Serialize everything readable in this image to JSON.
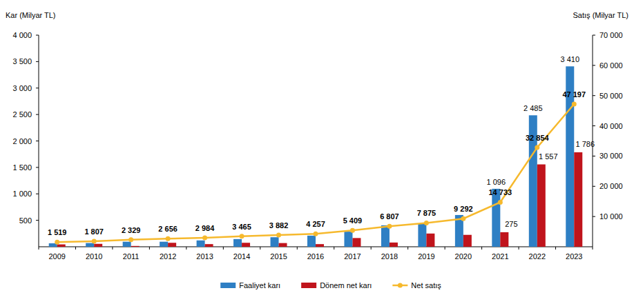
{
  "chart_data": {
    "type": "bar",
    "y_label": "Kar (Milyar TL)",
    "y2_label": "Satış (Milyar TL)",
    "categories": [
      "2009",
      "2010",
      "2011",
      "2012",
      "2013",
      "2014",
      "2015",
      "2016",
      "2017",
      "2018",
      "2019",
      "2020",
      "2021",
      "2022",
      "2023"
    ],
    "ylim": [
      0,
      4000
    ],
    "yticks": [
      500,
      {
        "value": 1000,
        "label": "1 000"
      },
      {
        "value": 1500,
        "label": "1 500"
      },
      {
        "value": 2000,
        "label": "2 000"
      },
      {
        "value": 2500,
        "label": "2 500"
      },
      {
        "value": 3000,
        "label": "3 000"
      },
      {
        "value": 3500,
        "label": "3 500"
      },
      {
        "value": 4000,
        "label": "4 000"
      }
    ],
    "y2lim": [
      0,
      70000
    ],
    "y2ticks": [
      {
        "value": 10000,
        "label": "10 000"
      },
      {
        "value": 20000,
        "label": "20 000"
      },
      {
        "value": 30000,
        "label": "30 000"
      },
      {
        "value": 40000,
        "label": "40 000"
      },
      {
        "value": 50000,
        "label": "50 000"
      },
      {
        "value": 60000,
        "label": "60 000"
      },
      {
        "value": 70000,
        "label": "70 000"
      }
    ],
    "grid": false,
    "legend": "bottom",
    "data_labels": true,
    "series": [
      {
        "name": "Faaliyet karı",
        "type": "bar",
        "color": "#2e7fc4",
        "values": [
          65,
          70,
          95,
          95,
          120,
          145,
          180,
          210,
          285,
          405,
          430,
          600,
          1096,
          2485,
          3410
        ],
        "value_labels": [
          null,
          null,
          null,
          null,
          null,
          null,
          null,
          null,
          null,
          null,
          null,
          null,
          "1 096",
          "2 485",
          "3 410"
        ]
      },
      {
        "name": "Dönem net karı",
        "type": "bar",
        "color": "#c0141c",
        "values": [
          45,
          55,
          15,
          75,
          50,
          75,
          70,
          50,
          165,
          80,
          250,
          225,
          275,
          1557,
          1786
        ],
        "value_labels": [
          null,
          null,
          null,
          null,
          null,
          null,
          null,
          null,
          null,
          null,
          null,
          null,
          "275",
          "1 557",
          "1 786"
        ]
      },
      {
        "name": "Net satış",
        "type": "line",
        "axis": "y2",
        "color": "#f6b92d",
        "marker": "circle",
        "line_style": "solid",
        "values": [
          1519,
          1807,
          2329,
          2656,
          2984,
          3465,
          3882,
          4257,
          5409,
          6807,
          7875,
          9292,
          14733,
          32854,
          47197
        ],
        "value_labels": [
          "1 519",
          "1 807",
          "2 329",
          "2 656",
          "2 984",
          "3 465",
          "3 882",
          "4 257",
          "5 409",
          "6 807",
          "7 875",
          "9 292",
          "14 733",
          "32 854",
          "47 197"
        ]
      }
    ]
  }
}
